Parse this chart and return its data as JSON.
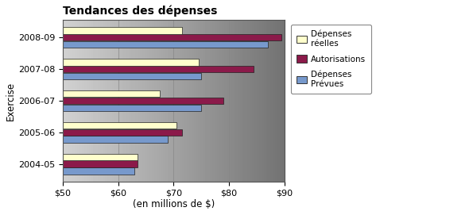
{
  "title": "Tendances des dépenses",
  "xlabel": "(en millions de $)",
  "ylabel": "Exercise",
  "categories": [
    "2004-05",
    "2005-06",
    "2006-07",
    "2007-08",
    "2008-09"
  ],
  "series_order": [
    "Dépenses\nPrévues",
    "Autorisations",
    "Dépenses\nréelles"
  ],
  "series": {
    "Dépenses\nréelles": [
      63.5,
      70.5,
      67.5,
      74.5,
      71.5
    ],
    "Autorisations": [
      63.5,
      71.5,
      79.0,
      84.5,
      89.5
    ],
    "Dépenses\nPrévues": [
      63.0,
      69.0,
      75.0,
      75.0,
      87.0
    ]
  },
  "colors": {
    "Dépenses\nréelles": "#FFFFCC",
    "Autorisations": "#8B1A4A",
    "Dépenses\nPrévues": "#7799CC"
  },
  "xlim": [
    50,
    90
  ],
  "xticks": [
    50,
    60,
    70,
    80,
    90
  ],
  "xtick_labels": [
    "$50",
    "$60",
    "$70",
    "$80",
    "$90"
  ],
  "bar_height": 0.22,
  "title_fontsize": 10,
  "axis_fontsize": 8.5,
  "tick_fontsize": 8
}
